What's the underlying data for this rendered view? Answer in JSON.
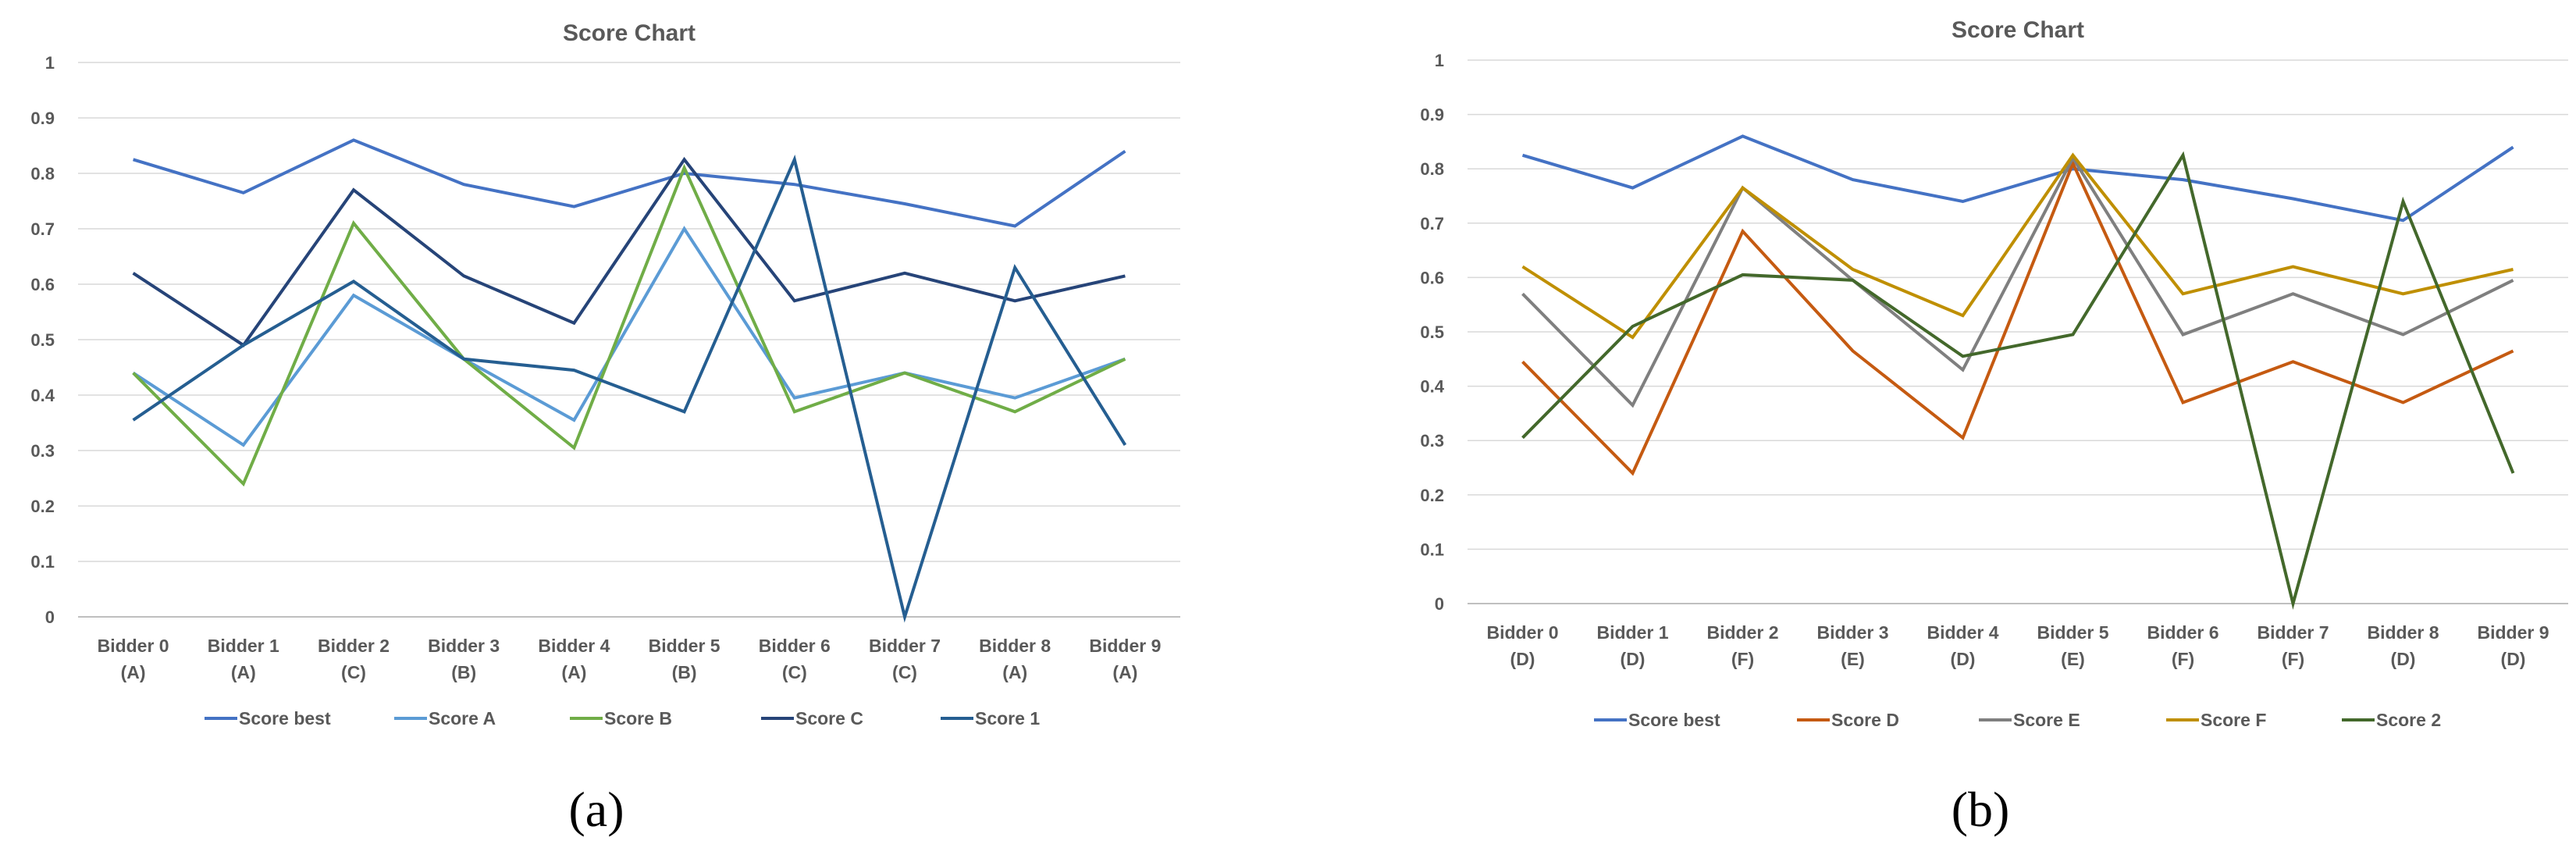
{
  "colors": {
    "Score best": "#4472C4",
    "Score A": "#5B9BD5",
    "Score B": "#70AD47",
    "Score C": "#264478",
    "Score 1": "#255E91",
    "Score D": "#C55A11",
    "Score E": "#7F7F7F",
    "Score F": "#BF8F00",
    "Score 2": "#43682B"
  },
  "chart_data": [
    {
      "type": "line",
      "panel_label": "(a)",
      "title": "Score Chart",
      "xlabel": "",
      "ylabel": "",
      "ylim": [
        0,
        1
      ],
      "yticks": [
        "0",
        "0.1",
        "0.2",
        "0.3",
        "0.4",
        "0.5",
        "0.6",
        "0.7",
        "0.8",
        "0.9",
        "1"
      ],
      "grid": true,
      "legend_position": "bottom",
      "categories": [
        [
          "Bidder 0",
          "(A)"
        ],
        [
          "Bidder 1",
          "(A)"
        ],
        [
          "Bidder 2",
          "(C)"
        ],
        [
          "Bidder 3",
          "(B)"
        ],
        [
          "Bidder 4",
          "(A)"
        ],
        [
          "Bidder 5",
          "(B)"
        ],
        [
          "Bidder 6",
          "(C)"
        ],
        [
          "Bidder 7",
          "(C)"
        ],
        [
          "Bidder 8",
          "(A)"
        ],
        [
          "Bidder 9",
          "(A)"
        ]
      ],
      "series": [
        {
          "name": "Score best",
          "values": [
            0.825,
            0.765,
            0.86,
            0.78,
            0.74,
            0.8,
            0.78,
            0.745,
            0.705,
            0.84
          ]
        },
        {
          "name": "Score A",
          "values": [
            0.44,
            0.31,
            0.58,
            0.465,
            0.355,
            0.7,
            0.395,
            0.44,
            0.395,
            0.465
          ]
        },
        {
          "name": "Score B",
          "values": [
            0.44,
            0.24,
            0.71,
            0.465,
            0.305,
            0.81,
            0.37,
            0.44,
            0.37,
            0.465
          ]
        },
        {
          "name": "Score C",
          "values": [
            0.62,
            0.49,
            0.77,
            0.615,
            0.53,
            0.825,
            0.57,
            0.62,
            0.57,
            0.615
          ]
        },
        {
          "name": "Score 1",
          "values": [
            0.355,
            0.49,
            0.605,
            0.465,
            0.445,
            0.37,
            0.825,
            0.0,
            0.63,
            0.31
          ]
        }
      ]
    },
    {
      "type": "line",
      "panel_label": "(b)",
      "title": "Score Chart",
      "xlabel": "",
      "ylabel": "",
      "ylim": [
        0,
        1
      ],
      "yticks": [
        "0",
        "0.1",
        "0.2",
        "0.3",
        "0.4",
        "0.5",
        "0.6",
        "0.7",
        "0.8",
        "0.9",
        "1"
      ],
      "grid": true,
      "legend_position": "bottom",
      "categories": [
        [
          "Bidder 0",
          "(D)"
        ],
        [
          "Bidder 1",
          "(D)"
        ],
        [
          "Bidder 2",
          "(F)"
        ],
        [
          "Bidder 3",
          "(E)"
        ],
        [
          "Bidder 4",
          "(D)"
        ],
        [
          "Bidder 5",
          "(E)"
        ],
        [
          "Bidder 6",
          "(F)"
        ],
        [
          "Bidder 7",
          "(F)"
        ],
        [
          "Bidder 8",
          "(D)"
        ],
        [
          "Bidder 9",
          "(D)"
        ]
      ],
      "series": [
        {
          "name": "Score best",
          "values": [
            0.825,
            0.765,
            0.86,
            0.78,
            0.74,
            0.8,
            0.78,
            0.745,
            0.705,
            0.84
          ]
        },
        {
          "name": "Score D",
          "values": [
            0.445,
            0.24,
            0.685,
            0.465,
            0.305,
            0.81,
            0.37,
            0.445,
            0.37,
            0.465
          ]
        },
        {
          "name": "Score E",
          "values": [
            0.57,
            0.365,
            0.765,
            0.595,
            0.43,
            0.82,
            0.495,
            0.57,
            0.495,
            0.595
          ]
        },
        {
          "name": "Score F",
          "values": [
            0.62,
            0.49,
            0.765,
            0.615,
            0.53,
            0.825,
            0.57,
            0.62,
            0.57,
            0.615
          ]
        },
        {
          "name": "Score 2",
          "values": [
            0.305,
            0.51,
            0.605,
            0.595,
            0.455,
            0.495,
            0.825,
            0.0,
            0.74,
            0.24
          ]
        }
      ]
    }
  ]
}
